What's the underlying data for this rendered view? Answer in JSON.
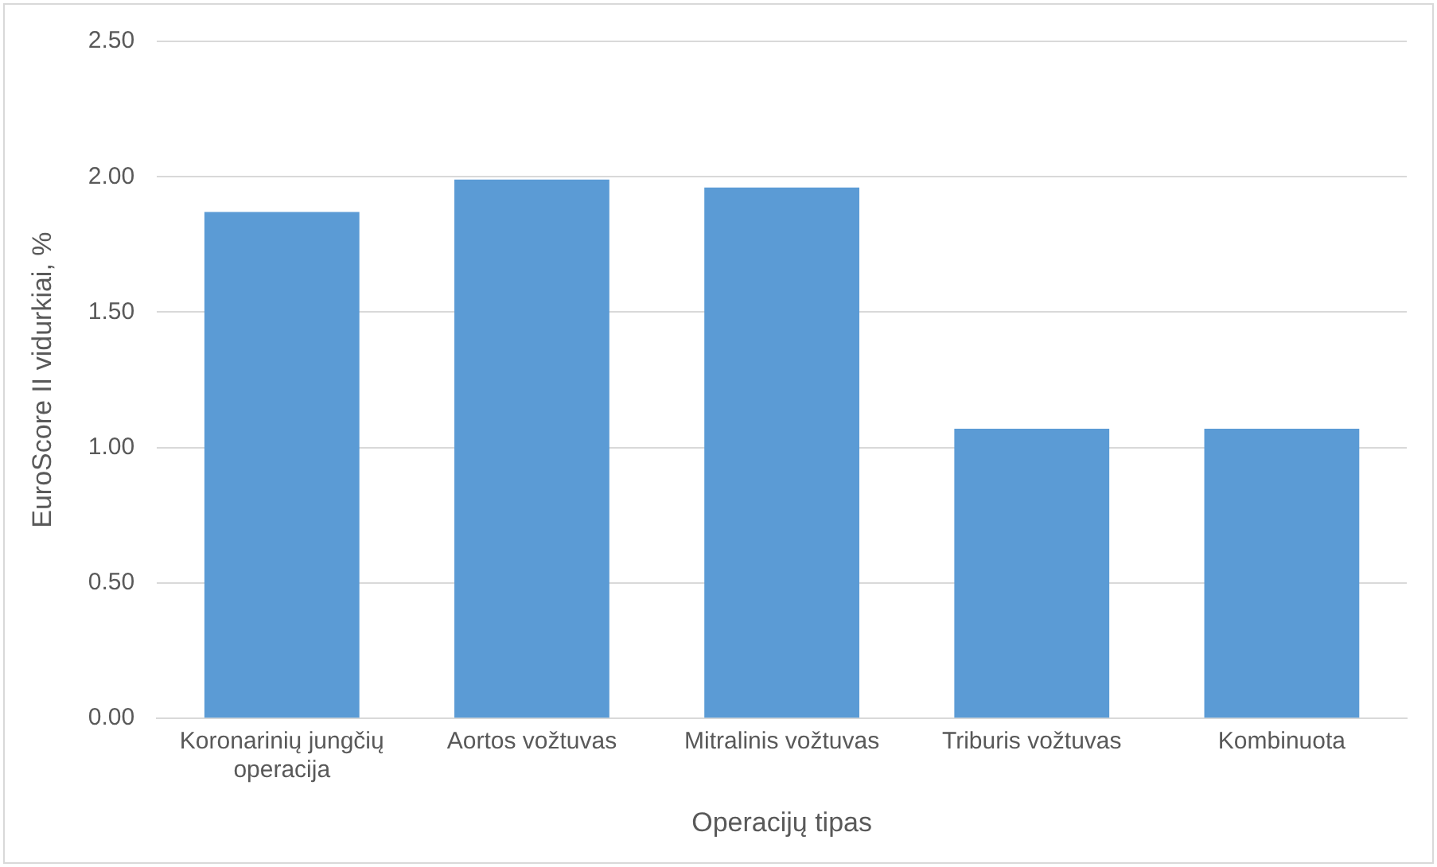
{
  "chart_data": {
    "type": "bar",
    "xlabel": "Operacijų tipas",
    "ylabel": "EuroScore II vidurkiai, %",
    "categories": [
      "Koronarinių jungčių operacija",
      "Aortos vožtuvas",
      "Mitralinis vožtuvas",
      "Triburis vožtuvas",
      "Kombinuota"
    ],
    "values": [
      1.87,
      1.99,
      1.96,
      1.07,
      1.07
    ],
    "color": "#5b9bd5",
    "ylim": [
      0,
      2.5
    ],
    "yticks": [
      {
        "value": 0,
        "label": "0.00"
      },
      {
        "value": 0.5,
        "label": "0.50"
      },
      {
        "value": 1,
        "label": "1.00"
      },
      {
        "value": 1.5,
        "label": "1.50"
      },
      {
        "value": 2,
        "label": "2.00"
      },
      {
        "value": 2.5,
        "label": "2.50"
      }
    ],
    "grid": "y",
    "legend": false
  }
}
